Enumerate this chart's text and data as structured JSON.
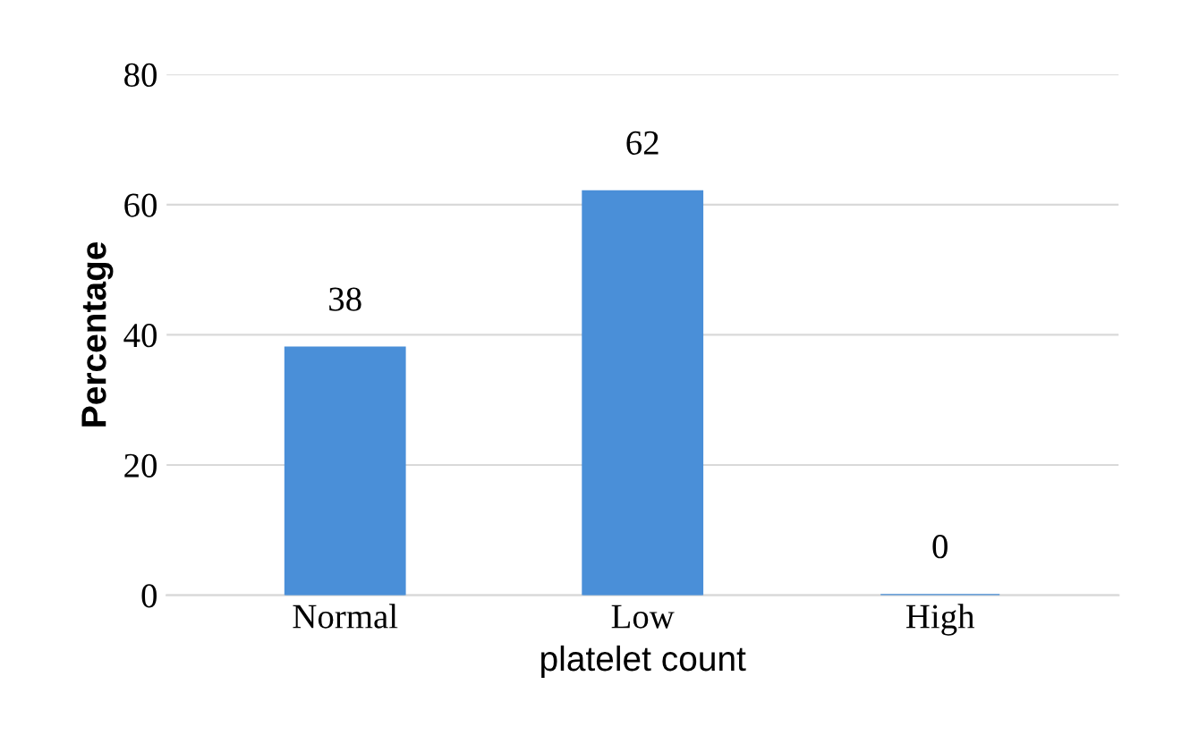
{
  "chart_data": {
    "type": "bar",
    "xlabel": "platelet count",
    "ylabel": "Percentage",
    "categories": [
      "Normal",
      "Low",
      "High"
    ],
    "values": [
      38,
      62,
      0
    ],
    "color": "#4a8fd8",
    "ylim": [
      0,
      80
    ],
    "yticks": [
      0,
      20,
      40,
      60,
      80
    ],
    "grid": "y",
    "data_labels": true
  }
}
